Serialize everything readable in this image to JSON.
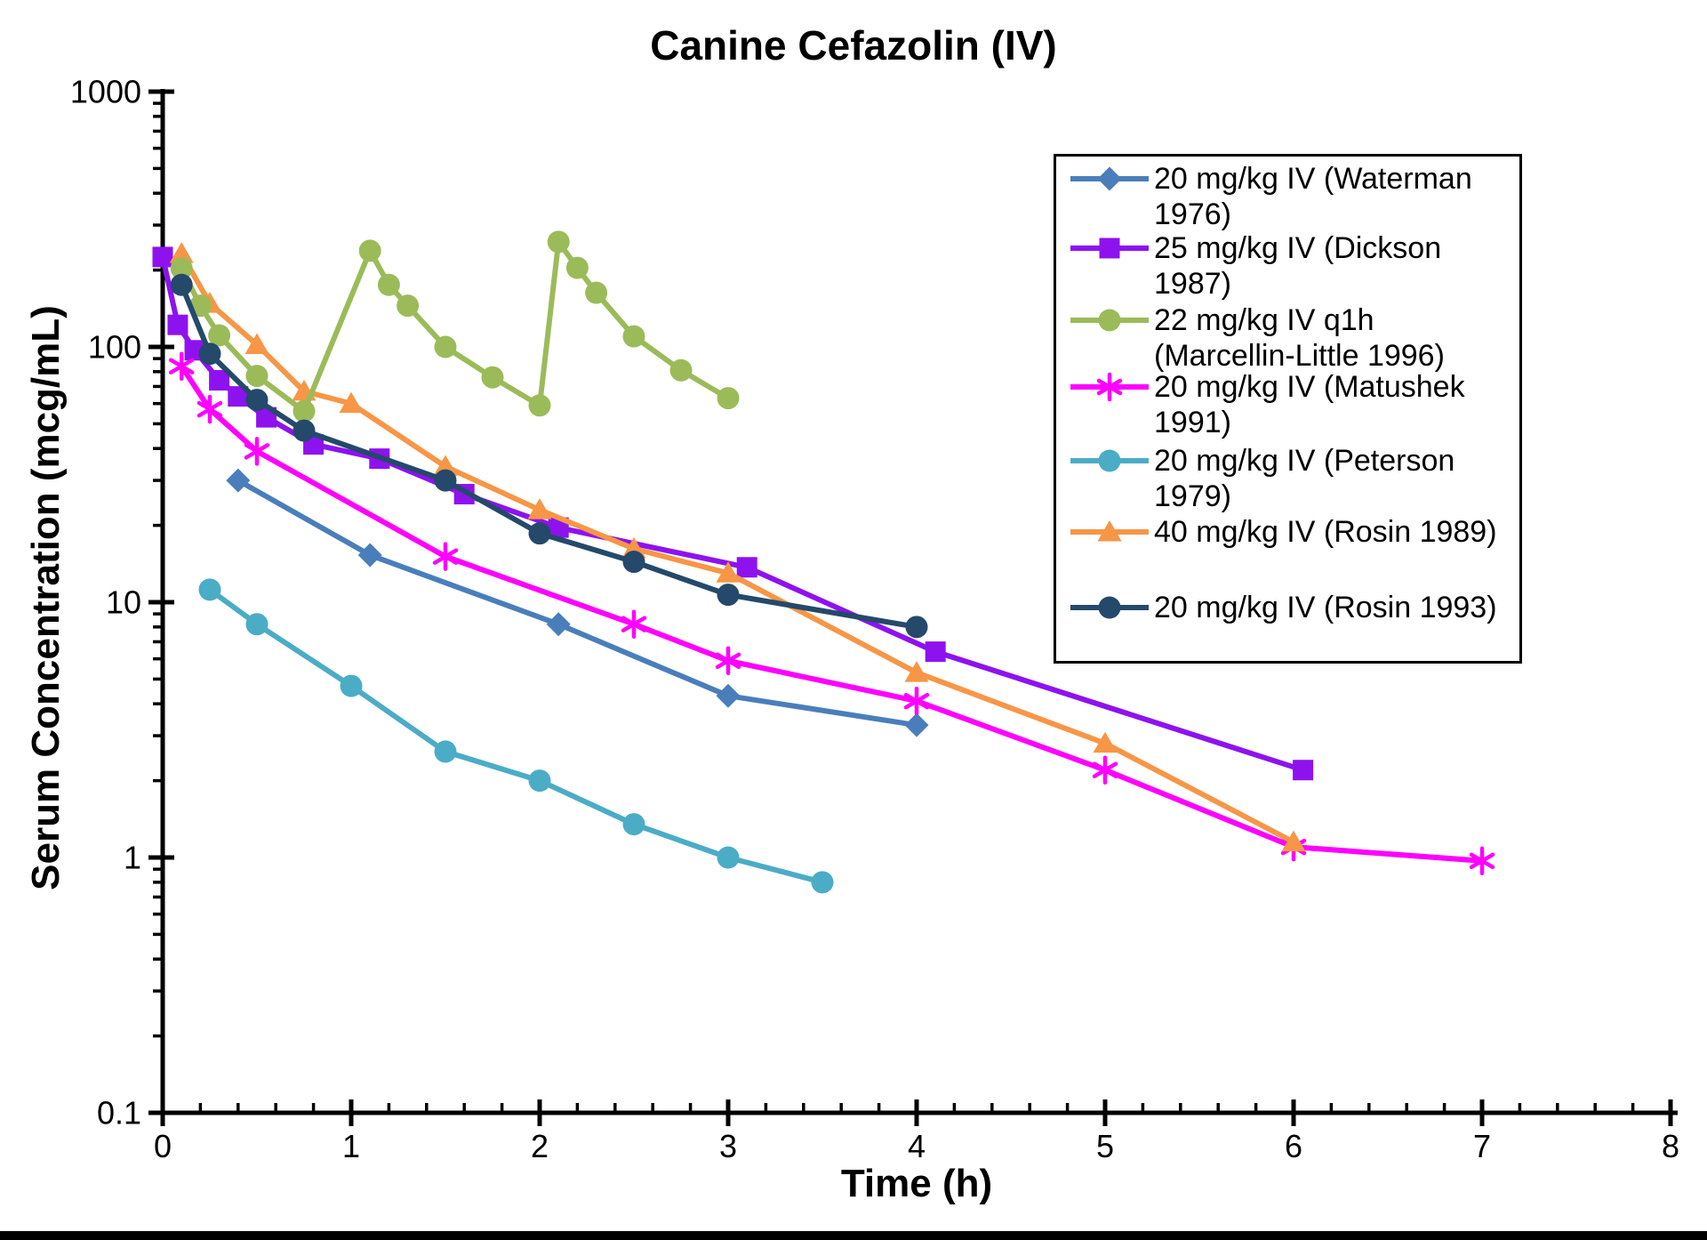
{
  "title": "Canine Cefazolin (IV)",
  "chart_data": {
    "type": "line",
    "title": "Canine Cefazolin (IV)",
    "xlabel": "Time (h)",
    "ylabel": "Serum Concentration (mcg/mL)",
    "x_axis": {
      "min": 0,
      "max": 8,
      "major_ticks": [
        0,
        1,
        2,
        3,
        4,
        5,
        6,
        7,
        8
      ],
      "major_tick_labels": [
        "0",
        "1",
        "2",
        "3",
        "4",
        "5",
        "6",
        "7",
        "8"
      ],
      "minor_tick_step": 0.2,
      "grid": false
    },
    "y_axis": {
      "scale": "log",
      "min": 0.1,
      "max": 1000,
      "major_ticks": [
        1000,
        100,
        10,
        1,
        0.1
      ],
      "major_tick_labels": [
        "1000",
        "100",
        "10",
        "1",
        "0.1"
      ],
      "minor_ticks": "log-decades-2-9",
      "grid": false
    },
    "legend_position": "upper-right-inside",
    "series": [
      {
        "name": "20 mg/kg IV (Waterman 1976)",
        "color": "#4A7EBB",
        "marker": "diamond",
        "points": [
          [
            0.4,
            30
          ],
          [
            1.1,
            15.3
          ],
          [
            2.1,
            8.2
          ],
          [
            3.0,
            4.3
          ],
          [
            4.0,
            3.3
          ]
        ]
      },
      {
        "name": "25 mg/kg IV (Dickson 1987)",
        "color": "#8E12EE",
        "marker": "square",
        "points": [
          [
            0,
            225
          ],
          [
            0.08,
            122
          ],
          [
            0.17,
            97
          ],
          [
            0.3,
            74
          ],
          [
            0.4,
            64
          ],
          [
            0.55,
            53
          ],
          [
            0.8,
            41.5
          ],
          [
            1.15,
            36.5
          ],
          [
            1.6,
            26.5
          ],
          [
            2.1,
            19.6
          ],
          [
            3.1,
            13.7
          ],
          [
            4.1,
            6.4
          ],
          [
            6.05,
            2.2
          ]
        ]
      },
      {
        "name": "22 mg/kg IV q1h (Marcellin-Little 1996)",
        "color": "#9BBB59",
        "marker": "circle",
        "points": [
          [
            0.1,
            203
          ],
          [
            0.2,
            145
          ],
          [
            0.3,
            111
          ],
          [
            0.5,
            77
          ],
          [
            0.75,
            56
          ],
          [
            1.1,
            238
          ],
          [
            1.2,
            175
          ],
          [
            1.3,
            145
          ],
          [
            1.5,
            100
          ],
          [
            1.75,
            76
          ],
          [
            2.0,
            59
          ],
          [
            2.1,
            258
          ],
          [
            2.2,
            204
          ],
          [
            2.3,
            163
          ],
          [
            2.5,
            110
          ],
          [
            2.75,
            81
          ],
          [
            3.0,
            63
          ]
        ]
      },
      {
        "name": "20 mg/kg IV (Matushek 1991)",
        "color": "#FF00FF",
        "marker": "asterisk",
        "points": [
          [
            0.1,
            84
          ],
          [
            0.25,
            57
          ],
          [
            0.5,
            39
          ],
          [
            1.5,
            15.1
          ],
          [
            2.5,
            8.2
          ],
          [
            3.0,
            5.9
          ],
          [
            4.0,
            4.1
          ],
          [
            5.0,
            2.2
          ],
          [
            6.0,
            1.1
          ],
          [
            7.0,
            0.97
          ]
        ]
      },
      {
        "name": "20 mg/kg IV (Peterson 1979)",
        "color": "#4BACC6",
        "marker": "circle",
        "points": [
          [
            0.25,
            11.2
          ],
          [
            0.5,
            8.2
          ],
          [
            1.0,
            4.7
          ],
          [
            1.5,
            2.6
          ],
          [
            2.0,
            2.0
          ],
          [
            2.5,
            1.35
          ],
          [
            3.0,
            1.0
          ],
          [
            3.5,
            0.8
          ]
        ]
      },
      {
        "name": "40 mg/kg IV (Rosin 1989)",
        "color": "#F79646",
        "marker": "triangle",
        "points": [
          [
            0.1,
            232
          ],
          [
            0.25,
            148
          ],
          [
            0.5,
            102
          ],
          [
            0.75,
            67
          ],
          [
            1.0,
            60
          ],
          [
            1.5,
            34
          ],
          [
            2.0,
            23
          ],
          [
            2.5,
            16.2
          ],
          [
            3.0,
            13
          ],
          [
            4.0,
            5.3
          ],
          [
            5.0,
            2.8
          ],
          [
            6.0,
            1.15
          ]
        ]
      },
      {
        "name": "20 mg/kg IV (Rosin 1993)",
        "color": "#24496B",
        "marker": "circle",
        "points": [
          [
            0.1,
            175
          ],
          [
            0.25,
            94
          ],
          [
            0.5,
            62
          ],
          [
            0.75,
            47
          ],
          [
            1.5,
            30
          ],
          [
            2.0,
            18.6
          ],
          [
            2.5,
            14.4
          ],
          [
            3.0,
            10.7
          ],
          [
            4.0,
            8.0
          ]
        ]
      }
    ]
  }
}
